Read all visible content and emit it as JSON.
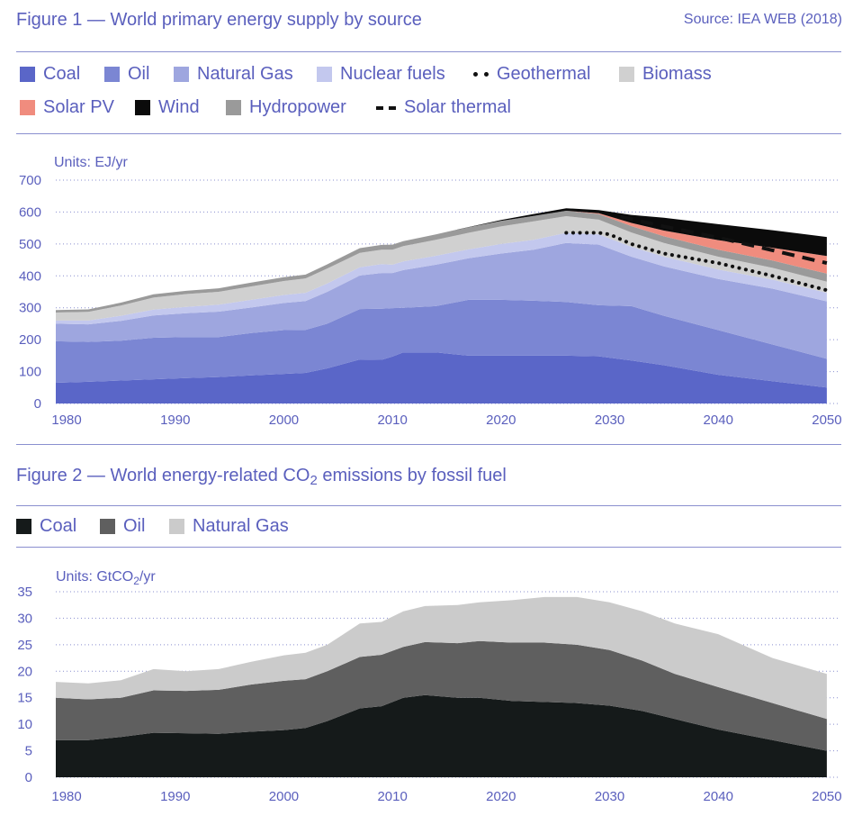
{
  "figure1": {
    "title": "Figure 1 — World primary energy supply by source",
    "source": "Source: IEA WEB (2018)",
    "units": "Units: EJ/yr",
    "legend": [
      {
        "label": "Coal",
        "color": "#5a66c8",
        "style": "swatch"
      },
      {
        "label": "Oil",
        "color": "#7b86d3",
        "style": "swatch"
      },
      {
        "label": "Natural Gas",
        "color": "#9ea6df",
        "style": "swatch"
      },
      {
        "label": "Nuclear fuels",
        "color": "#c3c8ee",
        "style": "swatch"
      },
      {
        "label": "Geothermal",
        "color": "#111111",
        "style": "dots"
      },
      {
        "label": "Biomass",
        "color": "#d0d0d0",
        "style": "swatch"
      },
      {
        "label": "Solar PV",
        "color": "#f08c7e",
        "style": "swatch"
      },
      {
        "label": "Wind",
        "color": "#0b0b0b",
        "style": "swatch"
      },
      {
        "label": "Hydropower",
        "color": "#9a9a9a",
        "style": "swatch"
      },
      {
        "label": "Solar thermal",
        "color": "#111111",
        "style": "dash"
      }
    ]
  },
  "figure2": {
    "title_pre": "Figure 2 — World energy-related CO",
    "title_sub": "2",
    "title_post": " emissions by fossil fuel",
    "units_pre": "Units: GtCO",
    "units_sub": "2",
    "units_post": "/yr",
    "legend": [
      {
        "label": "Coal",
        "color": "#151a1a"
      },
      {
        "label": "Oil",
        "color": "#5f5f5f"
      },
      {
        "label": "Natural Gas",
        "color": "#cbcbcb"
      }
    ]
  },
  "chart_data": [
    {
      "type": "area",
      "stacked": true,
      "units": "EJ/yr",
      "xlim": [
        1979,
        2051
      ],
      "ylim": [
        0,
        700
      ],
      "x_ticks": [
        1980,
        1990,
        2000,
        2010,
        2020,
        2030,
        2040,
        2050
      ],
      "y_ticks": [
        0,
        100,
        200,
        300,
        400,
        500,
        600,
        700
      ],
      "grid": "horizontal dotted",
      "legend_position": "top",
      "x": [
        1979,
        1982,
        1985,
        1988,
        1991,
        1994,
        1997,
        2000,
        2002,
        2004,
        2007,
        2009,
        2010,
        2011,
        2014,
        2017,
        2020,
        2023,
        2026,
        2029,
        2032,
        2035,
        2040,
        2045,
        2050
      ],
      "series": [
        {
          "name": "Coal",
          "color": "#5a66c8",
          "values": [
            65,
            68,
            72,
            76,
            80,
            83,
            88,
            93,
            96,
            110,
            138,
            137,
            147,
            160,
            160,
            150,
            150,
            150,
            150,
            148,
            135,
            120,
            90,
            70,
            50
          ]
        },
        {
          "name": "Oil",
          "color": "#7b86d3",
          "values": [
            130,
            125,
            125,
            130,
            128,
            125,
            133,
            137,
            135,
            140,
            158,
            160,
            152,
            140,
            145,
            175,
            175,
            172,
            168,
            160,
            170,
            155,
            140,
            115,
            90
          ]
        },
        {
          "name": "Natural Gas",
          "color": "#9ea6df",
          "values": [
            55,
            55,
            62,
            70,
            75,
            80,
            80,
            85,
            90,
            100,
            105,
            112,
            110,
            118,
            130,
            130,
            145,
            160,
            185,
            190,
            155,
            155,
            160,
            175,
            180
          ]
        },
        {
          "name": "Nuclear fuels",
          "color": "#c3c8ee",
          "values": [
            10,
            12,
            16,
            18,
            20,
            22,
            24,
            25,
            26,
            26,
            26,
            28,
            26,
            27,
            28,
            28,
            30,
            31,
            32,
            32,
            31,
            30,
            30,
            28,
            27
          ]
        },
        {
          "name": "Biomass",
          "color": "#d0d0d0",
          "values": [
            25,
            27,
            32,
            38,
            40,
            40,
            42,
            44,
            45,
            47,
            45,
            45,
            47,
            48,
            50,
            52,
            55,
            58,
            52,
            46,
            45,
            43,
            40,
            37,
            35
          ]
        },
        {
          "name": "Hydropower",
          "color": "#9a9a9a",
          "values": [
            8,
            8,
            9,
            10,
            10,
            11,
            12,
            12,
            12,
            13,
            15,
            15,
            16,
            16,
            17,
            17,
            17,
            17,
            17,
            18,
            20,
            21,
            22,
            23,
            25
          ]
        },
        {
          "name": "Solar PV",
          "color": "#f08c7e",
          "values": [
            0,
            0,
            0,
            0,
            0,
            0,
            0,
            0,
            0,
            0,
            0,
            0,
            0,
            0,
            0,
            0,
            0,
            0,
            0,
            2,
            10,
            18,
            30,
            40,
            55
          ]
        },
        {
          "name": "Wind",
          "color": "#0b0b0b",
          "values": [
            0,
            0,
            0,
            0,
            0,
            0,
            0,
            0,
            0,
            0,
            0,
            0,
            0,
            0,
            0,
            1,
            3,
            6,
            8,
            10,
            25,
            40,
            50,
            55,
            60
          ]
        }
      ],
      "overlays": [
        {
          "name": "Geothermal",
          "style": "dotted",
          "color": "#111111",
          "x": [
            2026,
            2029,
            2030,
            2032,
            2035,
            2040,
            2045,
            2050
          ],
          "y": [
            535,
            535,
            530,
            500,
            470,
            440,
            400,
            355
          ]
        },
        {
          "name": "Solar thermal",
          "style": "dashed",
          "color": "#111111",
          "x": [
            2031,
            2035,
            2040,
            2045,
            2050
          ],
          "y": [
            585,
            555,
            520,
            480,
            440
          ]
        }
      ]
    },
    {
      "type": "area",
      "stacked": true,
      "units": "GtCO2/yr",
      "xlim": [
        1979,
        2051
      ],
      "ylim": [
        0,
        35
      ],
      "x_ticks": [
        1980,
        1990,
        2000,
        2010,
        2020,
        2030,
        2040,
        2050
      ],
      "y_ticks": [
        0,
        5,
        10,
        15,
        20,
        25,
        30,
        35
      ],
      "grid": "horizontal dotted",
      "legend_position": "top",
      "x": [
        1979,
        1982,
        1985,
        1988,
        1991,
        1994,
        1997,
        2000,
        2002,
        2004,
        2007,
        2009,
        2011,
        2013,
        2016,
        2018,
        2021,
        2024,
        2027,
        2030,
        2033,
        2036,
        2040,
        2045,
        2050
      ],
      "series": [
        {
          "name": "Coal",
          "color": "#151a1a",
          "values": [
            7,
            7,
            7.6,
            8.4,
            8.3,
            8.2,
            8.6,
            8.9,
            9.3,
            10.6,
            13.0,
            13.4,
            15.0,
            15.5,
            15.0,
            15.0,
            14.4,
            14.2,
            14.0,
            13.5,
            12.5,
            11.0,
            9.0,
            7.0,
            5.0
          ]
        },
        {
          "name": "Oil",
          "color": "#5f5f5f",
          "values": [
            8,
            7.7,
            7.4,
            8.0,
            8.0,
            8.3,
            8.9,
            9.3,
            9.2,
            9.4,
            9.7,
            9.7,
            9.6,
            10.0,
            10.3,
            10.7,
            11.0,
            11.2,
            11.0,
            10.5,
            9.5,
            8.5,
            8.0,
            7.0,
            6.0
          ]
        },
        {
          "name": "Natural Gas",
          "color": "#cbcbcb",
          "values": [
            3,
            3,
            3.3,
            4.0,
            3.7,
            3.9,
            4.3,
            4.8,
            5.0,
            5.0,
            6.3,
            6.2,
            6.7,
            6.8,
            7.2,
            7.3,
            8.0,
            8.6,
            9.0,
            9.0,
            9.3,
            9.5,
            10.0,
            8.5,
            8.5
          ]
        }
      ]
    }
  ]
}
